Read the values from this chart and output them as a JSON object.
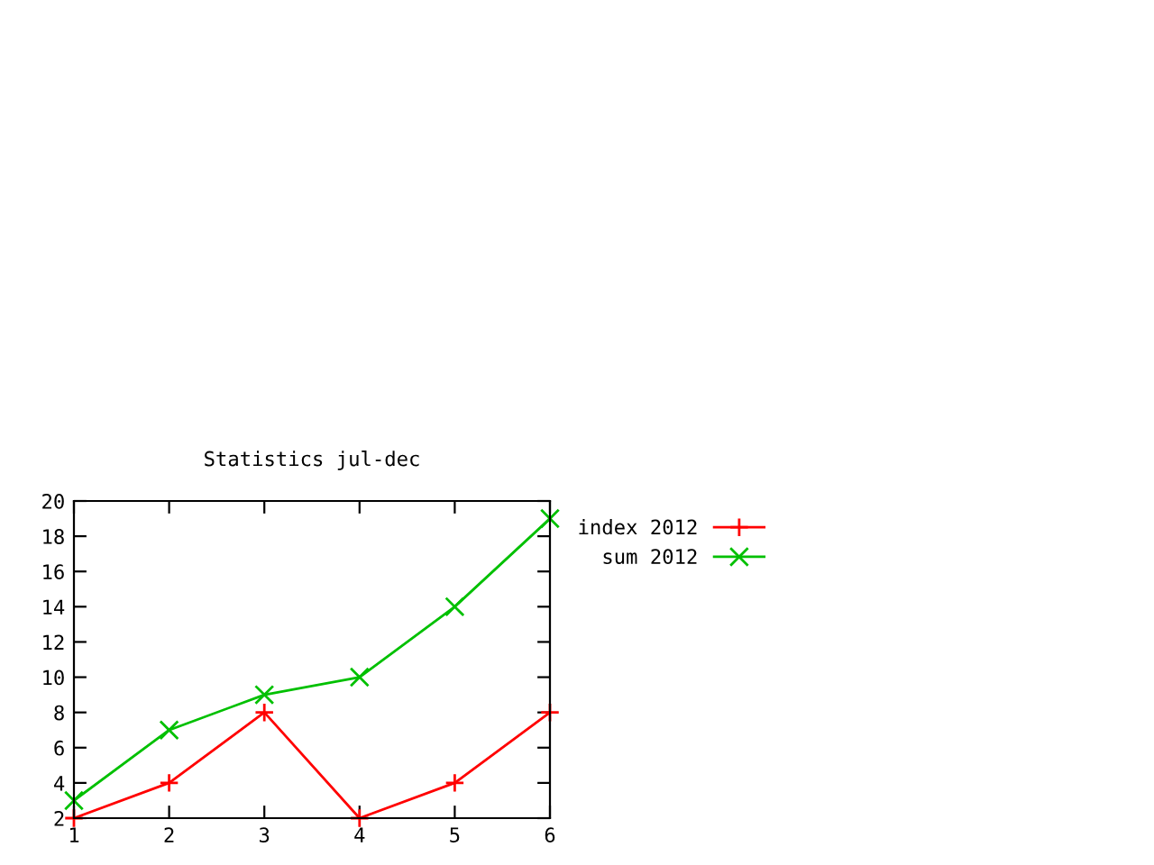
{
  "chart_data": {
    "type": "line",
    "title": "Statistics jul-dec",
    "x": [
      1,
      2,
      3,
      4,
      5,
      6
    ],
    "series": [
      {
        "name": "index 2012",
        "color": "#ff0000",
        "marker": "plus",
        "values": [
          2,
          4,
          8,
          2,
          4,
          8
        ]
      },
      {
        "name": "sum 2012",
        "color": "#00c000",
        "marker": "cross",
        "values": [
          3,
          7,
          9,
          10,
          14,
          19
        ]
      }
    ],
    "xlim": [
      1,
      6
    ],
    "xticks": [
      1,
      2,
      3,
      4,
      5,
      6
    ],
    "ylim": [
      2,
      20
    ],
    "yticks": [
      2,
      4,
      6,
      8,
      10,
      12,
      14,
      16,
      18,
      20
    ],
    "grid": false,
    "legend": "top right",
    "line_style": "solid"
  }
}
